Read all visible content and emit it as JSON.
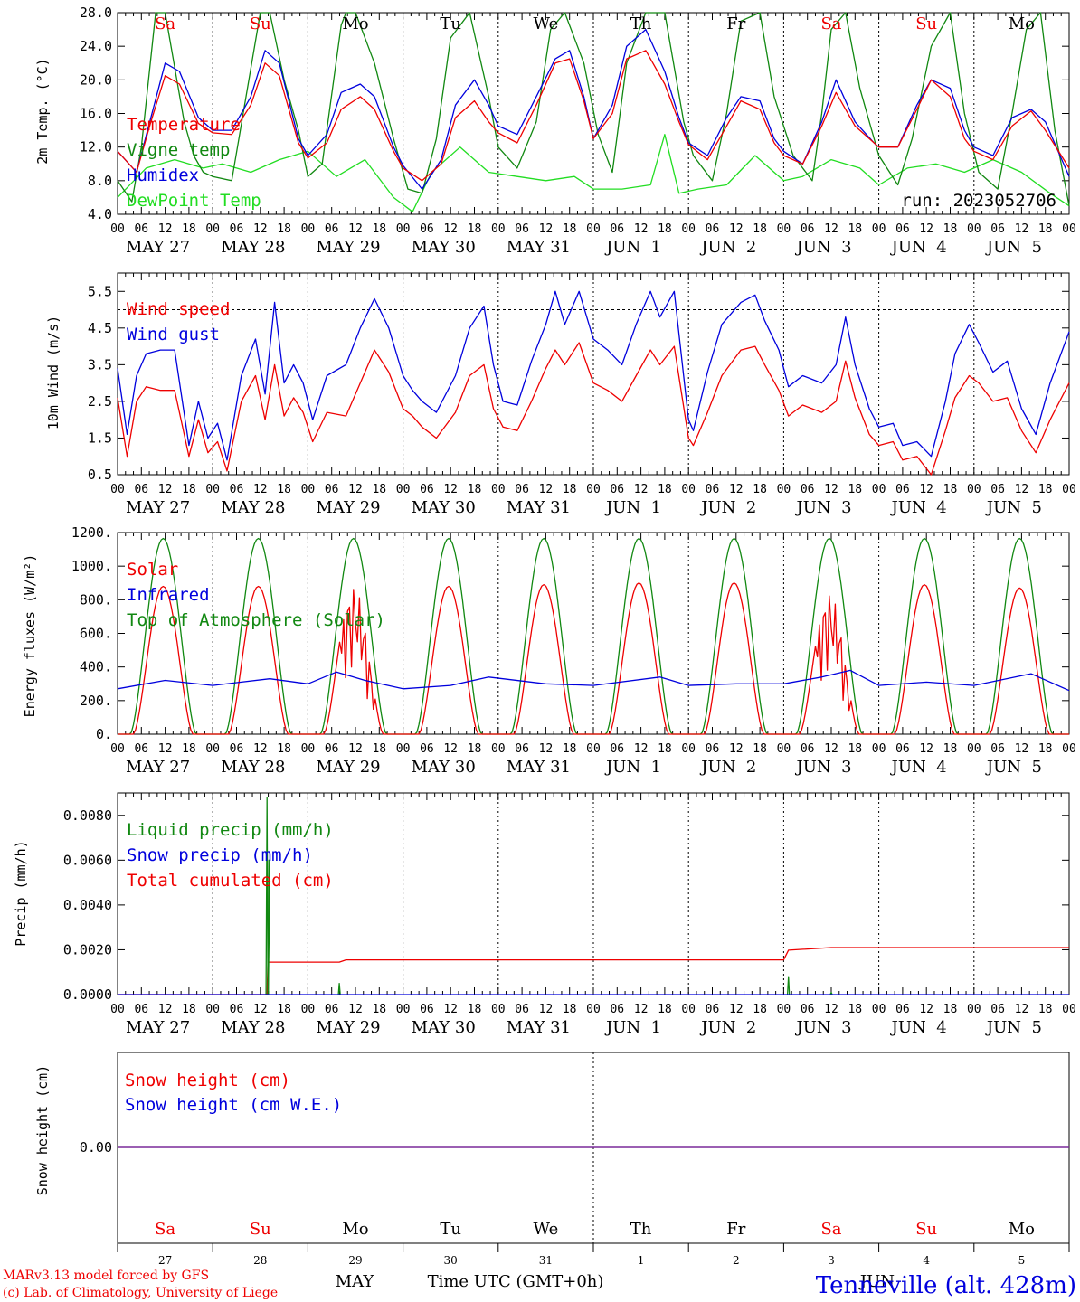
{
  "colors": {
    "red": "#ee0000",
    "blue": "#0000dd",
    "green": "#118811",
    "lime": "#22dd22",
    "purple": "#7a2a9a",
    "black": "#000000"
  },
  "axis": {
    "hour_ticks": [
      "00",
      "06",
      "12",
      "18"
    ],
    "end_tick": "00",
    "day_labels": [
      "MAY 27",
      "MAY 28",
      "MAY 29",
      "MAY 30",
      "MAY 31",
      "JUN  1",
      "JUN  2",
      "JUN  3",
      "JUN  4",
      "JUN  5"
    ],
    "weekdays": [
      "Sa",
      "Su",
      "Mo",
      "Tu",
      "We",
      "Th",
      "Fr",
      "Sa",
      "Su",
      "Mo"
    ],
    "weekday_weekend": [
      true,
      true,
      false,
      false,
      false,
      false,
      false,
      true,
      true,
      false
    ],
    "day_numbers": [
      "27",
      "28",
      "29",
      "30",
      "31",
      "1",
      "2",
      "3",
      "4",
      "5"
    ],
    "month_may": "MAY",
    "month_jun": "JUN",
    "time_label": "Time UTC (GMT+0h)"
  },
  "footer": {
    "credit1": "MARv3.13 model forced by GFS",
    "credit2": "(c) Lab. of Climatology, University of Liege",
    "station": "Tenneville (alt. 428m)"
  },
  "chart_data": [
    {
      "type": "line",
      "ylabel": "2m Temp. (°C)",
      "ylim": [
        4.0,
        28.0
      ],
      "yticks": [
        "4.0",
        "8.0",
        "12.0",
        "16.0",
        "20.0",
        "24.0",
        "28.0"
      ],
      "annotation": "run: 2023052706",
      "x_unit": "days since MAY 27 00 UTC",
      "series": [
        {
          "name": "Temperature",
          "color": "red",
          "x": [
            0,
            0.2,
            0.35,
            0.5,
            0.65,
            0.85,
            1.0,
            1.2,
            1.4,
            1.55,
            1.7,
            1.9,
            2.0,
            2.2,
            2.35,
            2.55,
            2.7,
            2.9,
            3.0,
            3.2,
            3.4,
            3.55,
            3.75,
            3.9,
            4.0,
            4.2,
            4.4,
            4.6,
            4.75,
            4.9,
            5.0,
            5.2,
            5.35,
            5.55,
            5.75,
            5.9,
            6.0,
            6.2,
            6.4,
            6.55,
            6.75,
            6.9,
            7.0,
            7.2,
            7.4,
            7.55,
            7.75,
            7.95,
            8.0,
            8.2,
            8.4,
            8.55,
            8.75,
            8.9,
            9.0,
            9.2,
            9.4,
            9.6,
            9.75,
            10.0
          ],
          "values": [
            11.5,
            9.0,
            15.0,
            20.5,
            19.5,
            14.8,
            13.7,
            13.5,
            17.0,
            22.0,
            20.5,
            12.5,
            10.7,
            12.5,
            16.5,
            18.0,
            16.5,
            11.5,
            9.5,
            8.0,
            10.0,
            15.5,
            17.5,
            15.0,
            13.7,
            12.5,
            17.0,
            22.0,
            22.5,
            17.5,
            13.0,
            16.0,
            22.5,
            23.5,
            19.5,
            15.0,
            12.3,
            10.5,
            14.5,
            17.5,
            16.5,
            12.5,
            11.0,
            10.0,
            14.5,
            18.5,
            14.5,
            12.5,
            12.0,
            12.0,
            16.5,
            20.0,
            18.0,
            13.0,
            11.5,
            10.5,
            14.5,
            16.3,
            14.0,
            9.5
          ]
        },
        {
          "name": "Vigne temp",
          "color": "green",
          "x": [
            0,
            0.15,
            0.25,
            0.4,
            0.5,
            0.7,
            0.8,
            0.9,
            1.0,
            1.2,
            1.35,
            1.5,
            1.6,
            1.75,
            1.9,
            2.0,
            2.15,
            2.35,
            2.4,
            2.5,
            2.7,
            2.9,
            3.05,
            3.2,
            3.35,
            3.5,
            3.7,
            3.9,
            4.0,
            4.2,
            4.4,
            4.55,
            4.7,
            4.9,
            5.05,
            5.2,
            5.35,
            5.55,
            5.75,
            5.95,
            6.05,
            6.25,
            6.4,
            6.55,
            6.75,
            6.9,
            7.1,
            7.3,
            7.4,
            7.5,
            7.65,
            7.8,
            8.0,
            8.2,
            8.35,
            8.55,
            8.75,
            8.9,
            9.05,
            9.25,
            9.4,
            9.55,
            9.7,
            9.85,
            10.0
          ],
          "values": [
            8.0,
            5.5,
            12.0,
            28.0,
            28.0,
            15.0,
            11.0,
            9.0,
            8.5,
            8.0,
            18.0,
            28.0,
            28.0,
            20.0,
            14.0,
            8.5,
            10.0,
            26.5,
            28.0,
            28.0,
            22.0,
            13.0,
            7.0,
            6.5,
            13.0,
            25.0,
            28.0,
            18.0,
            12.0,
            9.5,
            15.0,
            26.0,
            28.0,
            22.0,
            13.5,
            9.0,
            22.0,
            28.0,
            28.0,
            15.0,
            11.0,
            8.0,
            16.0,
            27.0,
            28.0,
            18.0,
            11.0,
            8.0,
            16.0,
            26.0,
            28.0,
            19.0,
            11.0,
            7.5,
            13.0,
            24.0,
            28.0,
            16.0,
            9.0,
            7.0,
            16.0,
            26.0,
            28.0,
            14.0,
            5.0
          ]
        },
        {
          "name": "Humidex",
          "color": "blue",
          "x": [
            0,
            0.2,
            0.35,
            0.5,
            0.65,
            0.85,
            1.0,
            1.2,
            1.4,
            1.55,
            1.7,
            1.9,
            2.0,
            2.2,
            2.35,
            2.55,
            2.7,
            2.9,
            3.0,
            3.2,
            3.4,
            3.55,
            3.75,
            3.9,
            4.0,
            4.2,
            4.4,
            4.6,
            4.75,
            4.9,
            5.0,
            5.2,
            5.35,
            5.55,
            5.75,
            5.9,
            6.0,
            6.2,
            6.4,
            6.55,
            6.75,
            6.9,
            7.0,
            7.2,
            7.4,
            7.55,
            7.75,
            7.95,
            8.0,
            8.2,
            8.4,
            8.55,
            8.75,
            8.9,
            9.0,
            9.2,
            9.4,
            9.6,
            9.75,
            10.0
          ],
          "values": [
            11.5,
            9.0,
            15.5,
            22.0,
            21.0,
            15.5,
            14.0,
            14.0,
            18.0,
            23.5,
            22.0,
            13.0,
            11.0,
            13.5,
            18.5,
            19.5,
            18.0,
            12.0,
            9.8,
            7.0,
            10.5,
            17.0,
            20.0,
            17.0,
            14.5,
            13.5,
            18.0,
            22.5,
            23.5,
            18.0,
            13.0,
            17.0,
            24.0,
            26.0,
            21.0,
            15.5,
            12.5,
            11.0,
            15.5,
            18.0,
            17.5,
            13.0,
            11.5,
            10.0,
            15.0,
            20.0,
            15.0,
            12.5,
            12.0,
            12.0,
            17.0,
            20.0,
            19.0,
            14.0,
            12.0,
            11.0,
            15.5,
            16.5,
            15.0,
            8.5
          ]
        },
        {
          "name": "DewPoint Temp",
          "color": "lime",
          "x": [
            0,
            0.3,
            0.6,
            0.9,
            1.1,
            1.4,
            1.7,
            2.0,
            2.3,
            2.6,
            2.9,
            3.1,
            3.3,
            3.6,
            3.9,
            4.2,
            4.5,
            4.8,
            5.0,
            5.3,
            5.6,
            5.75,
            5.9,
            6.1,
            6.4,
            6.7,
            7.0,
            7.2,
            7.5,
            7.8,
            8.0,
            8.3,
            8.6,
            8.9,
            9.2,
            9.5,
            9.8,
            10.0
          ],
          "values": [
            6.0,
            9.5,
            10.5,
            9.5,
            10.0,
            9.0,
            10.5,
            11.5,
            8.5,
            10.5,
            6.0,
            4.3,
            9.0,
            12.0,
            9.0,
            8.5,
            8.0,
            8.5,
            7.0,
            7.0,
            7.5,
            13.5,
            6.5,
            7.0,
            7.5,
            11.0,
            8.0,
            8.5,
            10.5,
            9.5,
            7.5,
            9.5,
            10.0,
            9.0,
            10.5,
            9.0,
            6.5,
            5.0
          ]
        }
      ]
    },
    {
      "type": "line",
      "ylabel": "10m Wind (m/s)",
      "ylim": [
        0.5,
        6.0
      ],
      "yticks": [
        "0.5",
        "1.5",
        "2.5",
        "3.5",
        "4.5",
        "5.5"
      ],
      "reference_line": 5.0,
      "x_unit": "days since MAY 27 00 UTC",
      "series": [
        {
          "name": "Wind speed",
          "color": "red",
          "x": [
            0,
            0.1,
            0.2,
            0.3,
            0.45,
            0.6,
            0.75,
            0.85,
            0.95,
            1.05,
            1.15,
            1.3,
            1.45,
            1.55,
            1.65,
            1.75,
            1.85,
            1.95,
            2.05,
            2.2,
            2.4,
            2.55,
            2.7,
            2.85,
            3.0,
            3.1,
            3.2,
            3.35,
            3.55,
            3.7,
            3.85,
            3.95,
            4.05,
            4.2,
            4.35,
            4.5,
            4.6,
            4.7,
            4.85,
            5.0,
            5.15,
            5.3,
            5.45,
            5.6,
            5.7,
            5.85,
            6.0,
            6.05,
            6.2,
            6.35,
            6.55,
            6.7,
            6.8,
            6.95,
            7.05,
            7.2,
            7.4,
            7.55,
            7.65,
            7.75,
            7.9,
            8.0,
            8.15,
            8.25,
            8.4,
            8.55,
            8.7,
            8.8,
            8.95,
            9.05,
            9.2,
            9.35,
            9.5,
            9.65,
            9.8,
            10.0
          ],
          "values": [
            2.6,
            1.0,
            2.5,
            2.9,
            2.8,
            2.8,
            1.0,
            2.0,
            1.1,
            1.4,
            0.6,
            2.5,
            3.2,
            2.0,
            3.5,
            2.1,
            2.6,
            2.2,
            1.4,
            2.2,
            2.1,
            3.0,
            3.9,
            3.3,
            2.3,
            2.1,
            1.8,
            1.5,
            2.2,
            3.2,
            3.5,
            2.3,
            1.8,
            1.7,
            2.5,
            3.4,
            3.9,
            3.5,
            4.1,
            3.0,
            2.8,
            2.5,
            3.2,
            3.9,
            3.5,
            4.0,
            1.5,
            1.3,
            2.2,
            3.2,
            3.9,
            4.0,
            3.5,
            2.8,
            2.1,
            2.4,
            2.2,
            2.5,
            3.6,
            2.6,
            1.6,
            1.3,
            1.4,
            0.9,
            1.0,
            0.5,
            1.7,
            2.6,
            3.2,
            3.0,
            2.5,
            2.6,
            1.7,
            1.1,
            2.0,
            3.0
          ]
        },
        {
          "name": "Wind gust",
          "color": "blue",
          "x": [
            0,
            0.1,
            0.2,
            0.3,
            0.45,
            0.6,
            0.75,
            0.85,
            0.95,
            1.05,
            1.15,
            1.3,
            1.45,
            1.55,
            1.65,
            1.75,
            1.85,
            1.95,
            2.05,
            2.2,
            2.4,
            2.55,
            2.7,
            2.85,
            3.0,
            3.1,
            3.2,
            3.35,
            3.55,
            3.7,
            3.85,
            3.95,
            4.05,
            4.2,
            4.35,
            4.5,
            4.6,
            4.7,
            4.85,
            5.0,
            5.15,
            5.3,
            5.45,
            5.6,
            5.7,
            5.85,
            6.0,
            6.05,
            6.2,
            6.35,
            6.55,
            6.7,
            6.8,
            6.95,
            7.05,
            7.2,
            7.4,
            7.55,
            7.65,
            7.75,
            7.9,
            8.0,
            8.15,
            8.25,
            8.4,
            8.55,
            8.7,
            8.8,
            8.95,
            9.05,
            9.2,
            9.35,
            9.5,
            9.65,
            9.8,
            10.0
          ],
          "values": [
            3.4,
            1.6,
            3.2,
            3.8,
            3.9,
            3.9,
            1.3,
            2.5,
            1.5,
            1.9,
            0.9,
            3.2,
            4.2,
            2.7,
            5.2,
            3.0,
            3.5,
            3.0,
            2.0,
            3.2,
            3.5,
            4.5,
            5.3,
            4.5,
            3.2,
            2.8,
            2.5,
            2.2,
            3.2,
            4.5,
            5.1,
            3.5,
            2.5,
            2.4,
            3.6,
            4.6,
            5.5,
            4.6,
            5.5,
            4.2,
            3.9,
            3.5,
            4.6,
            5.5,
            4.8,
            5.5,
            2.0,
            1.7,
            3.3,
            4.6,
            5.2,
            5.4,
            4.7,
            3.9,
            2.9,
            3.2,
            3.0,
            3.5,
            4.8,
            3.5,
            2.3,
            1.8,
            1.9,
            1.3,
            1.4,
            1.0,
            2.5,
            3.8,
            4.6,
            4.1,
            3.3,
            3.6,
            2.3,
            1.6,
            3.0,
            4.4
          ]
        }
      ]
    },
    {
      "type": "line",
      "ylabel": "Energy fluxes (W/m²)",
      "ylim": [
        0,
        1200
      ],
      "yticks": [
        "0.",
        "200.",
        "400.",
        "600.",
        "800.",
        "1000.",
        "1200."
      ],
      "x_unit": "days since MAY 27 00 UTC",
      "series": [
        {
          "name": "Solar",
          "color": "red",
          "daily_peaks": [
            880,
            880,
            880,
            880,
            890,
            900,
            900,
            840,
            890,
            870
          ],
          "disturbed_days": [
            2,
            7
          ]
        },
        {
          "name": "Infrared",
          "color": "blue",
          "x": [
            0,
            0.5,
            1.0,
            1.6,
            2.0,
            2.3,
            2.6,
            3.0,
            3.5,
            3.9,
            4.5,
            5.0,
            5.7,
            6.0,
            6.5,
            7.0,
            7.4,
            7.7,
            8.0,
            8.5,
            9.0,
            9.6,
            10.0
          ],
          "values": [
            270,
            320,
            290,
            330,
            300,
            370,
            320,
            270,
            290,
            340,
            300,
            290,
            340,
            290,
            300,
            300,
            340,
            380,
            290,
            310,
            290,
            360,
            260
          ]
        },
        {
          "name": "Top of Atmosphere (Solar)",
          "color": "green",
          "daily_peak": 1165
        }
      ]
    },
    {
      "type": "line",
      "ylabel": "Precip (mm/h)",
      "ylim": [
        0,
        0.009
      ],
      "yticks": [
        "0.0000",
        "0.0020",
        "0.0040",
        "0.0060",
        "0.0080"
      ],
      "x_unit": "days since MAY 27 00 UTC",
      "series": [
        {
          "name": "Liquid precip (mm/h)",
          "color": "green",
          "spikes": [
            [
              1.57,
              0.0088
            ],
            [
              1.59,
              0.006
            ],
            [
              2.33,
              0.0005
            ],
            [
              7.05,
              0.0008
            ],
            [
              7.5,
              0.0001
            ]
          ]
        },
        {
          "name": "Snow precip (mm/h)",
          "color": "blue",
          "x": [
            0,
            10
          ],
          "values": [
            0,
            0
          ]
        },
        {
          "name": "Total cumulated (cm)",
          "color": "red",
          "x": [
            0,
            1.57,
            1.58,
            2.33,
            2.4,
            7.0,
            7.05,
            7.5,
            10.0
          ],
          "values": [
            0,
            0,
            0.00145,
            0.00145,
            0.00155,
            0.00155,
            0.00198,
            0.0021,
            0.0021
          ]
        }
      ]
    },
    {
      "type": "line",
      "ylabel": "Snow height (cm)",
      "yticks": [
        "0.00"
      ],
      "x_unit": "days since MAY 27 00 UTC",
      "series": [
        {
          "name": "Snow height (cm)",
          "color": "red",
          "x": [
            0,
            10
          ],
          "values": [
            0,
            0
          ]
        },
        {
          "name": "Snow height (cm W.E.)",
          "color": "blue",
          "x": [
            0,
            10
          ],
          "values": [
            0,
            0
          ]
        }
      ]
    }
  ]
}
